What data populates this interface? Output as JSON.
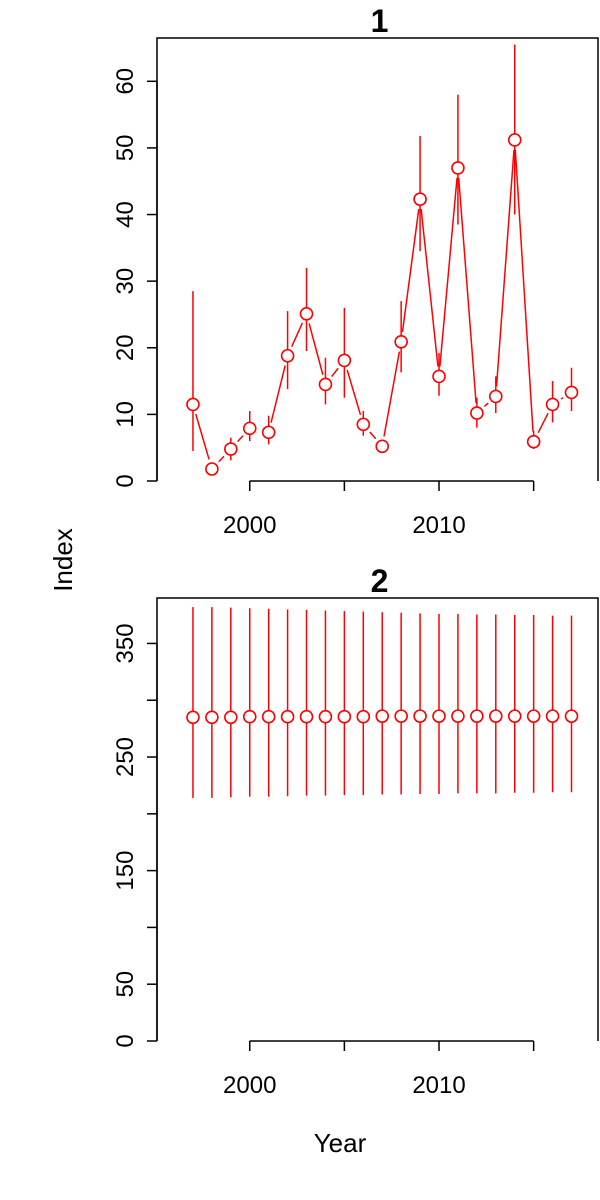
{
  "figure": {
    "ylabel": "Index",
    "xlabel": "Year",
    "series_color": "#ff0000"
  },
  "chart_data": [
    {
      "type": "scatter",
      "title": "1",
      "xlabel": "Year",
      "ylabel": "Index",
      "xlim": [
        1995.1,
        2018.4
      ],
      "ylim": [
        0,
        66.5
      ],
      "xticks": [
        2000,
        2005,
        2010,
        2015
      ],
      "xtick_labels": [
        "2000",
        "",
        "2010",
        ""
      ],
      "yticks": [
        0,
        10,
        20,
        30,
        40,
        50,
        60
      ],
      "ytick_labels": [
        "0",
        "10",
        "20",
        "30",
        "40",
        "50",
        "60"
      ],
      "connect_points": true,
      "x": [
        1997,
        1998,
        1999,
        2000,
        2001,
        2002,
        2003,
        2004,
        2005,
        2006,
        2007,
        2008,
        2009,
        2010,
        2011,
        2012,
        2013,
        2014,
        2015,
        2016,
        2017
      ],
      "values": [
        11.5,
        1.8,
        4.8,
        7.9,
        7.3,
        18.8,
        25.1,
        14.5,
        18.1,
        8.5,
        5.2,
        20.9,
        42.3,
        15.7,
        47.0,
        10.2,
        12.7,
        51.2,
        5.9,
        11.5,
        13.3
      ],
      "lower": [
        4.5,
        0.9,
        3.1,
        6.0,
        5.5,
        13.8,
        19.5,
        11.5,
        12.5,
        6.8,
        4.5,
        16.3,
        34.5,
        12.8,
        38.5,
        8.0,
        10.2,
        40.0,
        4.8,
        8.8,
        10.5
      ],
      "upper": [
        28.5,
        2.8,
        6.5,
        10.5,
        9.8,
        25.5,
        32.0,
        18.5,
        26.0,
        10.5,
        6.2,
        27.0,
        51.8,
        19.2,
        58.0,
        12.5,
        15.7,
        65.5,
        7.5,
        15.0,
        17.0
      ]
    },
    {
      "type": "scatter",
      "title": "2",
      "xlabel": "Year",
      "ylabel": "Index",
      "xlim": [
        1995.1,
        2018.4
      ],
      "ylim": [
        0,
        390
      ],
      "xticks": [
        2000,
        2005,
        2010,
        2015
      ],
      "xtick_labels": [
        "2000",
        "",
        "2010",
        ""
      ],
      "yticks": [
        0,
        50,
        100,
        150,
        200,
        250,
        300,
        350
      ],
      "ytick_labels": [
        "0",
        "50",
        "",
        "150",
        "",
        "250",
        "",
        "350"
      ],
      "connect_points": false,
      "x": [
        1997,
        1998,
        1999,
        2000,
        2001,
        2002,
        2003,
        2004,
        2005,
        2006,
        2007,
        2008,
        2009,
        2010,
        2011,
        2012,
        2013,
        2014,
        2015,
        2016,
        2017
      ],
      "values": [
        285,
        285,
        285,
        285.5,
        285.5,
        285.5,
        285.5,
        285.5,
        285.5,
        285.5,
        286,
        286,
        286,
        286,
        286,
        286,
        286,
        286,
        286,
        286,
        286
      ],
      "lower": [
        214,
        214,
        214.5,
        215,
        215,
        215.5,
        216,
        216,
        216.5,
        216.5,
        217,
        217,
        217.5,
        217.5,
        218,
        218,
        218,
        218.5,
        218.5,
        219,
        219
      ],
      "upper": [
        382,
        382,
        381.5,
        381,
        380.5,
        380,
        379.5,
        379,
        378.5,
        378,
        377.5,
        377,
        376.5,
        376,
        376,
        375.5,
        375.5,
        375,
        375,
        374.5,
        374.5
      ]
    }
  ]
}
